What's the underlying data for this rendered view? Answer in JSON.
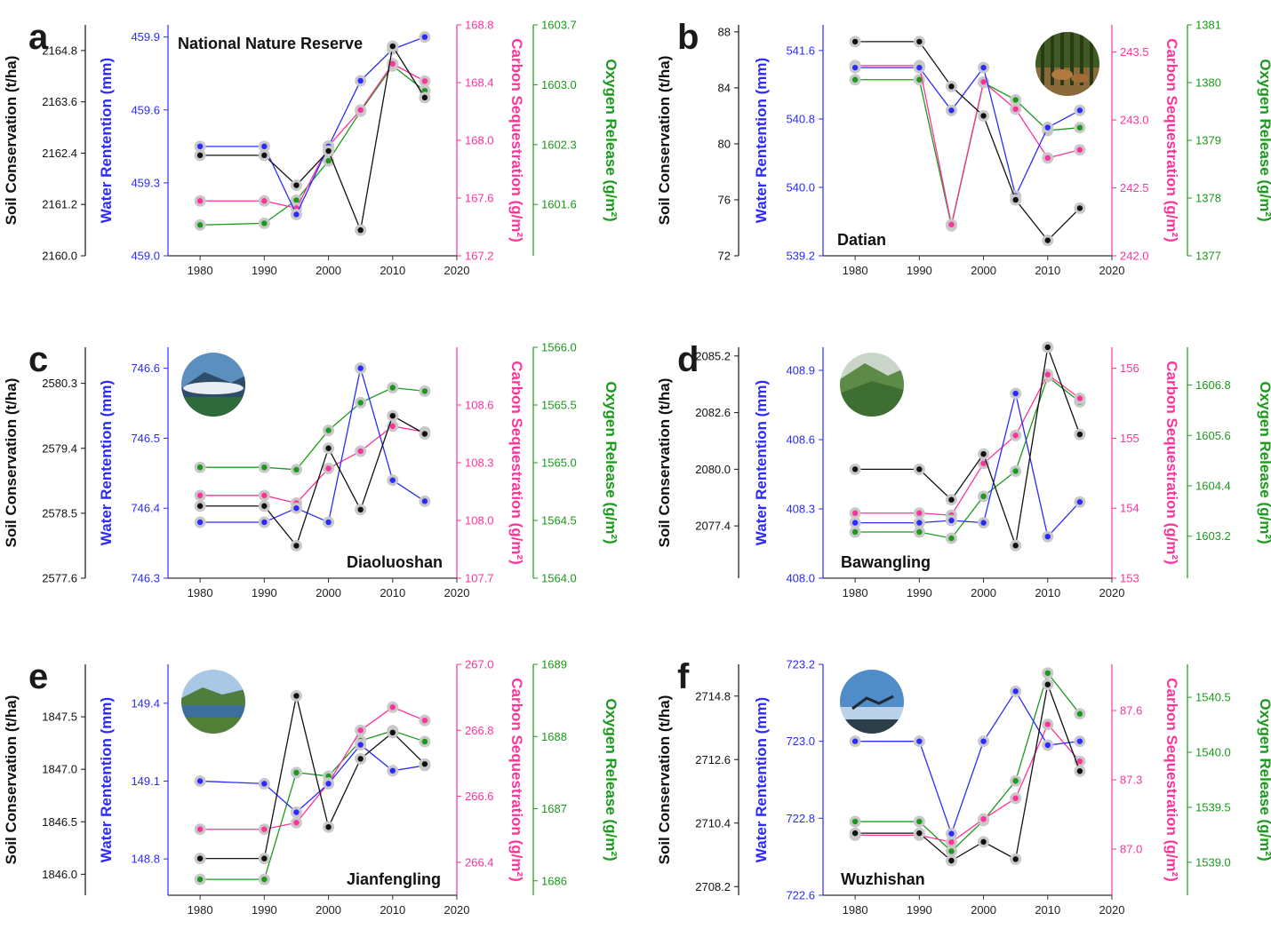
{
  "colors": {
    "soil": "#111111",
    "water": "#2b2bff",
    "carbon": "#ff3399",
    "oxygen": "#1a9a1a",
    "marker_halo": "#c8c8c8"
  },
  "icons": [
    "forest-deer-photo",
    "mountain-clouds-photo",
    "green-mountain-photo",
    "lake-forest-photo",
    "mountain-sky-photo"
  ],
  "chart_data": [
    {
      "type": "line",
      "letter": "a",
      "site": "National Nature Reserve",
      "icon": "",
      "x": [
        1980,
        1990,
        1995,
        2000,
        2005,
        2010,
        2015
      ],
      "xticks": [
        1980,
        1990,
        2000,
        2010,
        2020
      ],
      "xlim": [
        1975,
        2020
      ],
      "xlabel": "",
      "axes": {
        "soil": {
          "label": "Soil Conservation (t/ha)",
          "ylim": [
            2160.0,
            2165.4
          ],
          "ticks": [
            "2160.0",
            "2161.2",
            "2162.4",
            "2163.6",
            "2164.8"
          ]
        },
        "water": {
          "label": "Water Rentention (mm)",
          "ylim": [
            459.0,
            459.95
          ],
          "ticks": [
            "459.0",
            "459.3",
            "459.6",
            "459.9"
          ]
        },
        "carbon": {
          "label": "Carbon Sequestration (g/m²)",
          "ylim": [
            167.2,
            168.8
          ],
          "ticks": [
            "167.2",
            "167.6",
            "168.0",
            "168.4",
            "168.8"
          ]
        },
        "oxygen": {
          "label": "Oxygen Release (g/m²)",
          "ylim": [
            1601.0,
            1603.7
          ],
          "ticks": [
            "1601.6",
            "1602.3",
            "1603.0",
            "1603.7"
          ]
        }
      },
      "series": [
        {
          "name": "Soil Conservation",
          "axis": "soil",
          "values": [
            2162.35,
            2162.35,
            2161.65,
            2162.45,
            2160.6,
            2164.9,
            2163.7
          ]
        },
        {
          "name": "Water Rentention",
          "axis": "water",
          "values": [
            459.45,
            459.45,
            459.17,
            459.45,
            459.72,
            459.85,
            459.9
          ]
        },
        {
          "name": "Carbon Sequestration",
          "axis": "carbon",
          "values": [
            167.58,
            167.58,
            167.53,
            167.96,
            168.21,
            168.53,
            168.41
          ]
        },
        {
          "name": "Oxygen Release",
          "axis": "oxygen",
          "values": [
            1601.36,
            1601.38,
            1601.65,
            1602.11,
            1602.69,
            1603.22,
            1602.93
          ]
        }
      ]
    },
    {
      "type": "line",
      "letter": "b",
      "site": "Datian",
      "icon": "forest-deer-photo",
      "x": [
        1980,
        1990,
        1995,
        2000,
        2005,
        2010,
        2015
      ],
      "xticks": [
        1980,
        1990,
        2000,
        2010,
        2020
      ],
      "xlim": [
        1975,
        2020
      ],
      "xlabel": "",
      "axes": {
        "soil": {
          "label": "Soil Conservation (t/ha)",
          "ylim": [
            72.0,
            88.5
          ],
          "ticks": [
            "72",
            "76",
            "80",
            "84",
            "88"
          ]
        },
        "water": {
          "label": "Water Rentention (mm)",
          "ylim": [
            539.2,
            541.9
          ],
          "ticks": [
            "539.2",
            "540.0",
            "540.8",
            "541.6"
          ]
        },
        "carbon": {
          "label": "Carbon Sequestration (g/m²)",
          "ylim": [
            242.0,
            243.7
          ],
          "ticks": [
            "242.0",
            "242.5",
            "243.0",
            "243.5"
          ]
        },
        "oxygen": {
          "label": "Oxygen Release (g/m²)",
          "ylim": [
            1377,
            1381
          ],
          "ticks": [
            "1377",
            "1378",
            "1379",
            "1380",
            "1381"
          ]
        }
      },
      "series": [
        {
          "name": "Soil Conservation",
          "axis": "soil",
          "values": [
            87.3,
            87.3,
            84.1,
            82.0,
            76.0,
            73.1,
            75.4
          ]
        },
        {
          "name": "Water Rentention",
          "axis": "water",
          "values": [
            541.4,
            541.4,
            540.9,
            541.4,
            539.9,
            540.7,
            540.9
          ]
        },
        {
          "name": "Carbon Sequestration",
          "axis": "carbon",
          "values": [
            243.4,
            243.4,
            242.23,
            243.28,
            243.08,
            242.72,
            242.78
          ]
        },
        {
          "name": "Oxygen Release",
          "axis": "oxygen",
          "values": [
            1380.05,
            1380.05,
            1377.52,
            1380.0,
            1379.7,
            1379.17,
            1379.22
          ]
        }
      ]
    },
    {
      "type": "line",
      "letter": "c",
      "site": "Diaoluoshan",
      "icon": "mountain-clouds-photo",
      "x": [
        1980,
        1990,
        1995,
        2000,
        2005,
        2010,
        2015
      ],
      "xticks": [
        1980,
        1990,
        2000,
        2010,
        2020
      ],
      "xlim": [
        1975,
        2020
      ],
      "xlabel": "",
      "axes": {
        "soil": {
          "label": "Soil Conservation (t/ha)",
          "ylim": [
            2577.6,
            2580.8
          ],
          "ticks": [
            "2577.6",
            "2578.5",
            "2579.4",
            "2580.3"
          ]
        },
        "water": {
          "label": "Water Rentention (mm)",
          "ylim": [
            746.3,
            746.63
          ],
          "ticks": [
            "746.3",
            "746.4",
            "746.5",
            "746.6"
          ]
        },
        "carbon": {
          "label": "Carbon Sequestration (g/m²)",
          "ylim": [
            107.7,
            108.9
          ],
          "ticks": [
            "107.7",
            "108.0",
            "108.3",
            "108.6"
          ]
        },
        "oxygen": {
          "label": "Oxygen Release (g/m²)",
          "ylim": [
            1564.0,
            1566.0
          ],
          "ticks": [
            "1564.0",
            "1564.5",
            "1565.0",
            "1565.5",
            "1566.0"
          ]
        }
      },
      "series": [
        {
          "name": "Soil Conservation",
          "axis": "soil",
          "values": [
            2578.6,
            2578.6,
            2578.05,
            2579.4,
            2578.55,
            2579.85,
            2579.6
          ]
        },
        {
          "name": "Water Rentention",
          "axis": "water",
          "values": [
            746.38,
            746.38,
            746.4,
            746.38,
            746.6,
            746.44,
            746.41
          ]
        },
        {
          "name": "Carbon Sequestration",
          "axis": "carbon",
          "values": [
            108.13,
            108.13,
            108.09,
            108.27,
            108.36,
            108.49,
            108.46
          ]
        },
        {
          "name": "Oxygen Release",
          "axis": "oxygen",
          "values": [
            1564.96,
            1564.96,
            1564.94,
            1565.28,
            1565.52,
            1565.65,
            1565.62
          ]
        }
      ]
    },
    {
      "type": "line",
      "letter": "d",
      "site": "Bawangling",
      "icon": "green-mountain-photo",
      "x": [
        1980,
        1990,
        1995,
        2000,
        2005,
        2010,
        2015
      ],
      "xticks": [
        1980,
        1990,
        2000,
        2010,
        2020
      ],
      "xlim": [
        1975,
        2020
      ],
      "xlabel": "",
      "axes": {
        "soil": {
          "label": "Soil Conservation (t/ha)",
          "ylim": [
            2075.0,
            2085.6
          ],
          "ticks": [
            "2077.4",
            "2080.0",
            "2082.6",
            "2085.2"
          ]
        },
        "water": {
          "label": "Water Rentention (mm)",
          "ylim": [
            408.0,
            409.0
          ],
          "ticks": [
            "408.0",
            "408.3",
            "408.6",
            "408.9"
          ]
        },
        "carbon": {
          "label": "Carbon Sequestration (g/m²)",
          "ylim": [
            153.0,
            156.3
          ],
          "ticks": [
            "153",
            "154",
            "155",
            "156"
          ]
        },
        "oxygen": {
          "label": "Oxygen Release (g/m²)",
          "ylim": [
            1602.2,
            1607.7
          ],
          "ticks": [
            "1603.2",
            "1604.4",
            "1605.6",
            "1606.8"
          ]
        }
      },
      "series": [
        {
          "name": "Soil Conservation",
          "axis": "soil",
          "values": [
            2080.0,
            2080.0,
            2078.6,
            2080.7,
            2076.5,
            2085.6,
            2081.6
          ]
        },
        {
          "name": "Water Rentention",
          "axis": "water",
          "values": [
            408.24,
            408.24,
            408.25,
            408.24,
            408.8,
            408.18,
            408.33
          ]
        },
        {
          "name": "Carbon Sequestration",
          "axis": "carbon",
          "values": [
            153.93,
            153.93,
            153.9,
            154.64,
            155.04,
            155.91,
            155.57
          ]
        },
        {
          "name": "Oxygen Release",
          "axis": "oxygen",
          "values": [
            1603.3,
            1603.3,
            1603.15,
            1604.15,
            1604.75,
            1607.0,
            1606.4
          ]
        }
      ]
    },
    {
      "type": "line",
      "letter": "e",
      "site": "Jianfengling",
      "icon": "lake-forest-photo",
      "x": [
        1980,
        1990,
        1995,
        2000,
        2005,
        2010,
        2015
      ],
      "xticks": [
        1980,
        1990,
        2000,
        2010,
        2020
      ],
      "xlim": [
        1975,
        2020
      ],
      "xlabel": "",
      "axes": {
        "soil": {
          "label": "Soil Conservation (t/ha)",
          "ylim": [
            1845.8,
            1848.0
          ],
          "ticks": [
            "1846.0",
            "1846.5",
            "1847.0",
            "1847.5"
          ]
        },
        "water": {
          "label": "Water Rentention (mm)",
          "ylim": [
            148.66,
            149.55
          ],
          "ticks": [
            "148.8",
            "149.1",
            "149.4"
          ]
        },
        "carbon": {
          "label": "Carbon Sequestration (g/m²)",
          "ylim": [
            266.3,
            267.0
          ],
          "ticks": [
            "266.4",
            "266.6",
            "266.8",
            "267.0"
          ]
        },
        "oxygen": {
          "label": "Oxygen Release (g/m²)",
          "ylim": [
            1685.8,
            1689.0
          ],
          "ticks": [
            "1686",
            "1687",
            "1688",
            "1689"
          ]
        }
      },
      "series": [
        {
          "name": "Soil Conservation",
          "axis": "soil",
          "values": [
            1846.15,
            1846.15,
            1847.7,
            1846.45,
            1847.1,
            1847.35,
            1847.05
          ]
        },
        {
          "name": "Water Rentention",
          "axis": "water",
          "values": [
            149.1,
            149.09,
            148.98,
            149.09,
            149.24,
            149.14,
            149.16
          ]
        },
        {
          "name": "Carbon Sequestration",
          "axis": "carbon",
          "values": [
            266.5,
            266.5,
            266.52,
            266.64,
            266.8,
            266.87,
            266.83
          ]
        },
        {
          "name": "Oxygen Release",
          "axis": "oxygen",
          "values": [
            1686.02,
            1686.02,
            1687.5,
            1687.45,
            1687.94,
            1688.08,
            1687.93
          ]
        }
      ]
    },
    {
      "type": "line",
      "letter": "f",
      "site": "Wuzhishan",
      "icon": "mountain-sky-photo",
      "x": [
        1980,
        1990,
        1995,
        2000,
        2005,
        2010,
        2015
      ],
      "xticks": [
        1980,
        1990,
        2000,
        2010,
        2020
      ],
      "xlim": [
        1975,
        2020
      ],
      "xlabel": "",
      "axes": {
        "soil": {
          "label": "Soil Conservation (t/ha)",
          "ylim": [
            2707.9,
            2715.9
          ],
          "ticks": [
            "2708.2",
            "2710.4",
            "2712.6",
            "2714.8"
          ]
        },
        "water": {
          "label": "Water Rentention (mm)",
          "ylim": [
            722.6,
            723.2
          ],
          "ticks": [
            "722.6",
            "722.8",
            "723.0",
            "723.2"
          ]
        },
        "carbon": {
          "label": "Carbon Sequestration (g/m²)",
          "ylim": [
            86.8,
            87.8
          ],
          "ticks": [
            "87.0",
            "87.3",
            "87.6"
          ]
        },
        "oxygen": {
          "label": "Oxygen Release (g/m²)",
          "ylim": [
            1538.7,
            1540.8
          ],
          "ticks": [
            "1539.0",
            "1539.5",
            "1540.0",
            "1540.5"
          ]
        }
      },
      "series": [
        {
          "name": "Soil Conservation",
          "axis": "soil",
          "values": [
            2710.05,
            2710.05,
            2709.1,
            2709.75,
            2709.15,
            2715.2,
            2712.2
          ]
        },
        {
          "name": "Water Rentention",
          "axis": "water",
          "values": [
            723.0,
            723.0,
            722.76,
            723.0,
            723.13,
            722.99,
            723.0
          ]
        },
        {
          "name": "Carbon Sequestration",
          "axis": "carbon",
          "values": [
            87.06,
            87.06,
            87.03,
            87.13,
            87.22,
            87.54,
            87.38
          ]
        },
        {
          "name": "Oxygen Release",
          "axis": "oxygen",
          "values": [
            1539.37,
            1539.37,
            1539.1,
            1539.38,
            1539.74,
            1540.72,
            1540.35
          ]
        }
      ]
    }
  ]
}
